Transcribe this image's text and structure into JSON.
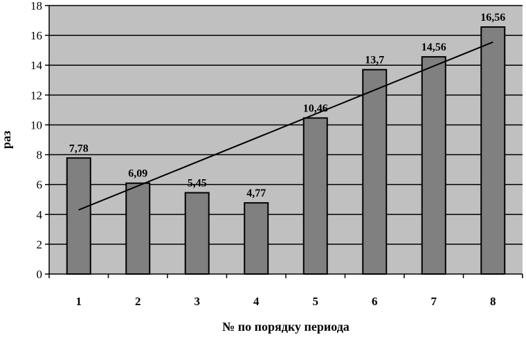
{
  "chart_data": {
    "type": "bar",
    "categories": [
      "1",
      "2",
      "3",
      "4",
      "5",
      "6",
      "7",
      "8"
    ],
    "values": [
      7.78,
      6.09,
      5.45,
      4.77,
      10.46,
      13.7,
      14.56,
      16.56
    ],
    "data_labels": [
      "7,78",
      "6,09",
      "5,45",
      "4,77",
      "10,46",
      "13,7",
      "14,56",
      "16,56"
    ],
    "title": "",
    "xlabel": "№ по порядку периода",
    "ylabel": "раз",
    "ylim": [
      0,
      18
    ],
    "yticks": [
      0,
      2,
      4,
      6,
      8,
      10,
      12,
      14,
      16,
      18
    ],
    "grid": true,
    "trendline": {
      "type": "linear",
      "start": 4.3,
      "end": 15.55
    },
    "colors": {
      "plot_background": "#c0c0c0",
      "bar_fill": "#808080",
      "bar_stroke": "#000000",
      "gridline": "#000000",
      "trendline": "#000000"
    }
  }
}
